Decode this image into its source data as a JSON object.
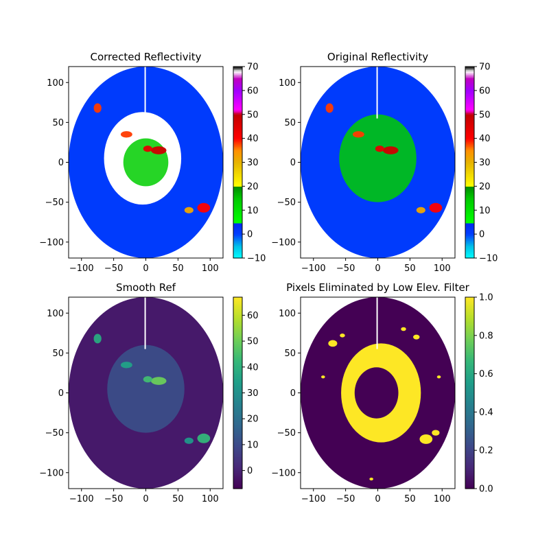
{
  "chart_data": [
    {
      "type": "heatmap",
      "title": "Corrected Reflectivity",
      "xlabel": "",
      "ylabel": "",
      "xlim": [
        -120,
        120
      ],
      "ylim": [
        -120,
        120
      ],
      "xticks": [
        -100,
        -50,
        0,
        50,
        100
      ],
      "yticks": [
        -100,
        -50,
        0,
        50,
        100
      ],
      "xtick_labels": [
        "−100",
        "−50",
        "0",
        "50",
        "100"
      ],
      "ytick_labels": [
        "−100",
        "−50",
        "0",
        "50",
        "100"
      ],
      "colormap": "pyart_NWSRef",
      "colorbar": {
        "min": -10,
        "max": 70,
        "ticks": [
          -10,
          0,
          10,
          20,
          30,
          40,
          50,
          60,
          70
        ],
        "tick_labels": [
          "−10",
          "0",
          "10",
          "20",
          "30",
          "40",
          "50",
          "60",
          "70"
        ]
      },
      "domain_radius_km": 120,
      "background_value": 1,
      "masked_region": "central low-elevation clutter removed (white)",
      "features": [
        {
          "x": 20,
          "y": 15,
          "rx": 12,
          "ry": 5,
          "value": 48
        },
        {
          "x": 3,
          "y": 17,
          "rx": 7,
          "ry": 4,
          "value": 44
        },
        {
          "x": -30,
          "y": 35,
          "rx": 9,
          "ry": 4,
          "value": 38
        },
        {
          "x": 90,
          "y": -57,
          "rx": 10,
          "ry": 6,
          "value": 40
        },
        {
          "x": 67,
          "y": -60,
          "rx": 7,
          "ry": 4,
          "value": 32
        },
        {
          "x": -75,
          "y": 68,
          "rx": 6,
          "ry": 6,
          "value": 38
        },
        {
          "x": 0,
          "y": 0,
          "rx": 35,
          "ry": 30,
          "value": 14
        }
      ]
    },
    {
      "type": "heatmap",
      "title": "Original Reflectivity",
      "xlabel": "",
      "ylabel": "",
      "xlim": [
        -120,
        120
      ],
      "ylim": [
        -120,
        120
      ],
      "xticks": [
        -100,
        -50,
        0,
        50,
        100
      ],
      "yticks": [
        -100,
        -50,
        0,
        50,
        100
      ],
      "xtick_labels": [
        "−100",
        "−50",
        "0",
        "50",
        "100"
      ],
      "ytick_labels": [
        "−100",
        "−50",
        "0",
        "50",
        "100"
      ],
      "colormap": "pyart_NWSRef",
      "colorbar": {
        "min": -10,
        "max": 70,
        "ticks": [
          -10,
          0,
          10,
          20,
          30,
          40,
          50,
          60,
          70
        ],
        "tick_labels": [
          "−10",
          "0",
          "10",
          "20",
          "30",
          "40",
          "50",
          "60",
          "70"
        ]
      },
      "domain_radius_km": 120,
      "background_value": 1,
      "features": [
        {
          "x": 20,
          "y": 15,
          "rx": 12,
          "ry": 5,
          "value": 48
        },
        {
          "x": 3,
          "y": 17,
          "rx": 7,
          "ry": 4,
          "value": 44
        },
        {
          "x": -30,
          "y": 35,
          "rx": 9,
          "ry": 4,
          "value": 38
        },
        {
          "x": 90,
          "y": -57,
          "rx": 10,
          "ry": 6,
          "value": 40
        },
        {
          "x": 67,
          "y": -60,
          "rx": 7,
          "ry": 4,
          "value": 32
        },
        {
          "x": -75,
          "y": 68,
          "rx": 6,
          "ry": 6,
          "value": 38
        },
        {
          "x": 0,
          "y": 5,
          "rx": 60,
          "ry": 55,
          "value": 14
        }
      ]
    },
    {
      "type": "heatmap",
      "title": "Smooth Ref",
      "xlabel": "",
      "ylabel": "",
      "xlim": [
        -120,
        120
      ],
      "ylim": [
        -120,
        120
      ],
      "xticks": [
        -100,
        -50,
        0,
        50,
        100
      ],
      "yticks": [
        -100,
        -50,
        0,
        50,
        100
      ],
      "xtick_labels": [
        "−100",
        "−50",
        "0",
        "50",
        "100"
      ],
      "ytick_labels": [
        "−100",
        "−50",
        "0",
        "50",
        "100"
      ],
      "colormap": "viridis",
      "colorbar": {
        "min": -7,
        "max": 67,
        "ticks": [
          0,
          10,
          20,
          30,
          40,
          50,
          60
        ],
        "tick_labels": [
          "0",
          "10",
          "20",
          "30",
          "40",
          "50",
          "60"
        ]
      },
      "domain_radius_km": 120,
      "background_value": -2,
      "features": [
        {
          "x": 20,
          "y": 15,
          "rx": 12,
          "ry": 5,
          "value": 50
        },
        {
          "x": 3,
          "y": 17,
          "rx": 7,
          "ry": 4,
          "value": 44
        },
        {
          "x": -30,
          "y": 35,
          "rx": 9,
          "ry": 4,
          "value": 35
        },
        {
          "x": 90,
          "y": -57,
          "rx": 10,
          "ry": 6,
          "value": 42
        },
        {
          "x": 67,
          "y": -60,
          "rx": 7,
          "ry": 4,
          "value": 32
        },
        {
          "x": -75,
          "y": 68,
          "rx": 6,
          "ry": 6,
          "value": 38
        },
        {
          "x": 0,
          "y": 5,
          "rx": 60,
          "ry": 55,
          "value": 12
        }
      ]
    },
    {
      "type": "heatmap",
      "title": "Pixels Eliminated by Low Elev. Filter",
      "xlabel": "",
      "ylabel": "",
      "xlim": [
        -120,
        120
      ],
      "ylim": [
        -120,
        120
      ],
      "xticks": [
        -100,
        -50,
        0,
        50,
        100
      ],
      "yticks": [
        -100,
        -50,
        0,
        50,
        100
      ],
      "xtick_labels": [
        "−100",
        "−50",
        "0",
        "50",
        "100"
      ],
      "ytick_labels": [
        "−100",
        "−50",
        "0",
        "50",
        "100"
      ],
      "colormap": "viridis",
      "colorbar": {
        "min": 0,
        "max": 1,
        "ticks": [
          0,
          0.2,
          0.4,
          0.6,
          0.8,
          1
        ],
        "tick_labels": [
          "0.0",
          "0.2",
          "0.4",
          "0.6",
          "0.8",
          "1.0"
        ]
      },
      "domain_radius_km": 120,
      "background_value": 0,
      "eliminated_value": 1,
      "eliminated_region": "annular ring around radar center (~25–55 km) plus scattered edge pixels"
    }
  ]
}
